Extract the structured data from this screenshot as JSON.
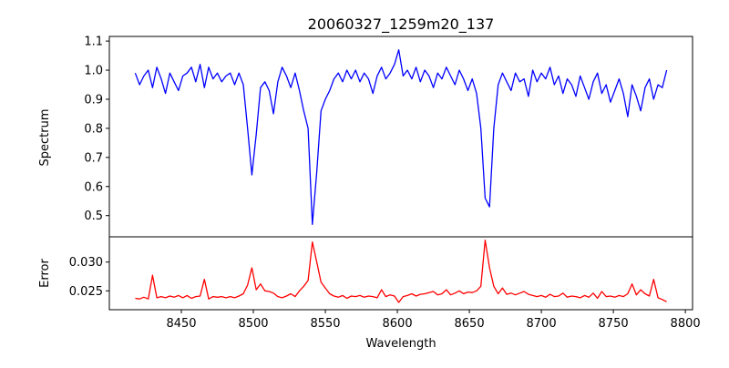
{
  "chart_data": [
    {
      "type": "line",
      "title": "20060327_1259m20_137",
      "xlabel": "",
      "ylabel": "Spectrum",
      "xlim": [
        8400,
        8805
      ],
      "ylim": [
        0.427,
        1.116
      ],
      "yticks": [
        0.5,
        0.6,
        0.7,
        0.8,
        0.9,
        1.0,
        1.1
      ],
      "ytick_labels": [
        "0.5",
        "0.6",
        "0.7",
        "0.8",
        "0.9",
        "1.0",
        "1.1"
      ],
      "color": "#0000ff",
      "x_start": 8418,
      "x_step": 3,
      "values": [
        0.99,
        0.95,
        0.98,
        1.0,
        0.94,
        1.01,
        0.97,
        0.92,
        0.99,
        0.96,
        0.93,
        0.98,
        0.99,
        1.01,
        0.96,
        1.02,
        0.94,
        1.01,
        0.97,
        0.99,
        0.96,
        0.98,
        0.99,
        0.95,
        0.99,
        0.95,
        0.8,
        0.64,
        0.78,
        0.94,
        0.96,
        0.93,
        0.85,
        0.96,
        1.01,
        0.98,
        0.94,
        0.99,
        0.93,
        0.86,
        0.8,
        0.47,
        0.65,
        0.86,
        0.9,
        0.93,
        0.97,
        0.99,
        0.96,
        1.0,
        0.97,
        1.0,
        0.96,
        0.99,
        0.97,
        0.92,
        0.98,
        1.01,
        0.97,
        0.99,
        1.02,
        1.07,
        0.98,
        1.0,
        0.97,
        1.01,
        0.96,
        1.0,
        0.98,
        0.94,
        0.99,
        0.97,
        1.01,
        0.98,
        0.95,
        1.0,
        0.97,
        0.93,
        0.97,
        0.92,
        0.8,
        0.56,
        0.53,
        0.8,
        0.95,
        0.99,
        0.96,
        0.93,
        0.99,
        0.96,
        0.97,
        0.91,
        1.0,
        0.96,
        0.99,
        0.97,
        1.01,
        0.95,
        0.98,
        0.92,
        0.97,
        0.95,
        0.91,
        0.98,
        0.94,
        0.9,
        0.96,
        0.99,
        0.92,
        0.95,
        0.89,
        0.93,
        0.97,
        0.92,
        0.84,
        0.95,
        0.91,
        0.86,
        0.94,
        0.97,
        0.9,
        0.95,
        0.94,
        1.0
      ]
    },
    {
      "type": "line",
      "title": "",
      "xlabel": "Wavelength",
      "ylabel": "Error",
      "xlim": [
        8400,
        8805
      ],
      "ylim": [
        0.02173,
        0.03438
      ],
      "xticks": [
        8450,
        8500,
        8550,
        8600,
        8650,
        8700,
        8750,
        8800
      ],
      "xtick_labels": [
        "8450",
        "8500",
        "8550",
        "8600",
        "8650",
        "8700",
        "8750",
        "8800"
      ],
      "yticks": [
        0.025,
        0.03
      ],
      "ytick_labels": [
        "0.025",
        "0.030"
      ],
      "color": "#ff0000",
      "x_start": 8418,
      "x_step": 3,
      "values": [
        0.0237,
        0.0236,
        0.0239,
        0.0236,
        0.0277,
        0.0238,
        0.024,
        0.0238,
        0.0241,
        0.0239,
        0.0242,
        0.0238,
        0.0242,
        0.0237,
        0.024,
        0.0241,
        0.027,
        0.0236,
        0.024,
        0.0239,
        0.024,
        0.0238,
        0.024,
        0.0238,
        0.0241,
        0.0245,
        0.026,
        0.029,
        0.0252,
        0.0262,
        0.025,
        0.0249,
        0.0246,
        0.024,
        0.0238,
        0.0241,
        0.0245,
        0.024,
        0.025,
        0.0258,
        0.0268,
        0.0335,
        0.03,
        0.0265,
        0.0255,
        0.0245,
        0.0241,
        0.0239,
        0.0242,
        0.0237,
        0.0241,
        0.024,
        0.0242,
        0.0239,
        0.0241,
        0.024,
        0.0238,
        0.0252,
        0.024,
        0.0243,
        0.0241,
        0.023,
        0.024,
        0.0242,
        0.0245,
        0.0241,
        0.0244,
        0.0245,
        0.0247,
        0.0249,
        0.0243,
        0.0245,
        0.0252,
        0.0243,
        0.0246,
        0.025,
        0.0245,
        0.0248,
        0.0247,
        0.025,
        0.0258,
        0.0338,
        0.029,
        0.0258,
        0.0245,
        0.0255,
        0.0244,
        0.0246,
        0.0243,
        0.0246,
        0.0249,
        0.0244,
        0.0242,
        0.024,
        0.0242,
        0.0239,
        0.0244,
        0.024,
        0.0241,
        0.0246,
        0.0239,
        0.0241,
        0.024,
        0.0238,
        0.0242,
        0.0239,
        0.0246,
        0.0237,
        0.0249,
        0.024,
        0.0241,
        0.0239,
        0.0242,
        0.024,
        0.0245,
        0.0262,
        0.0243,
        0.0252,
        0.0245,
        0.0241,
        0.027,
        0.0238,
        0.0235,
        0.0231
      ]
    }
  ]
}
